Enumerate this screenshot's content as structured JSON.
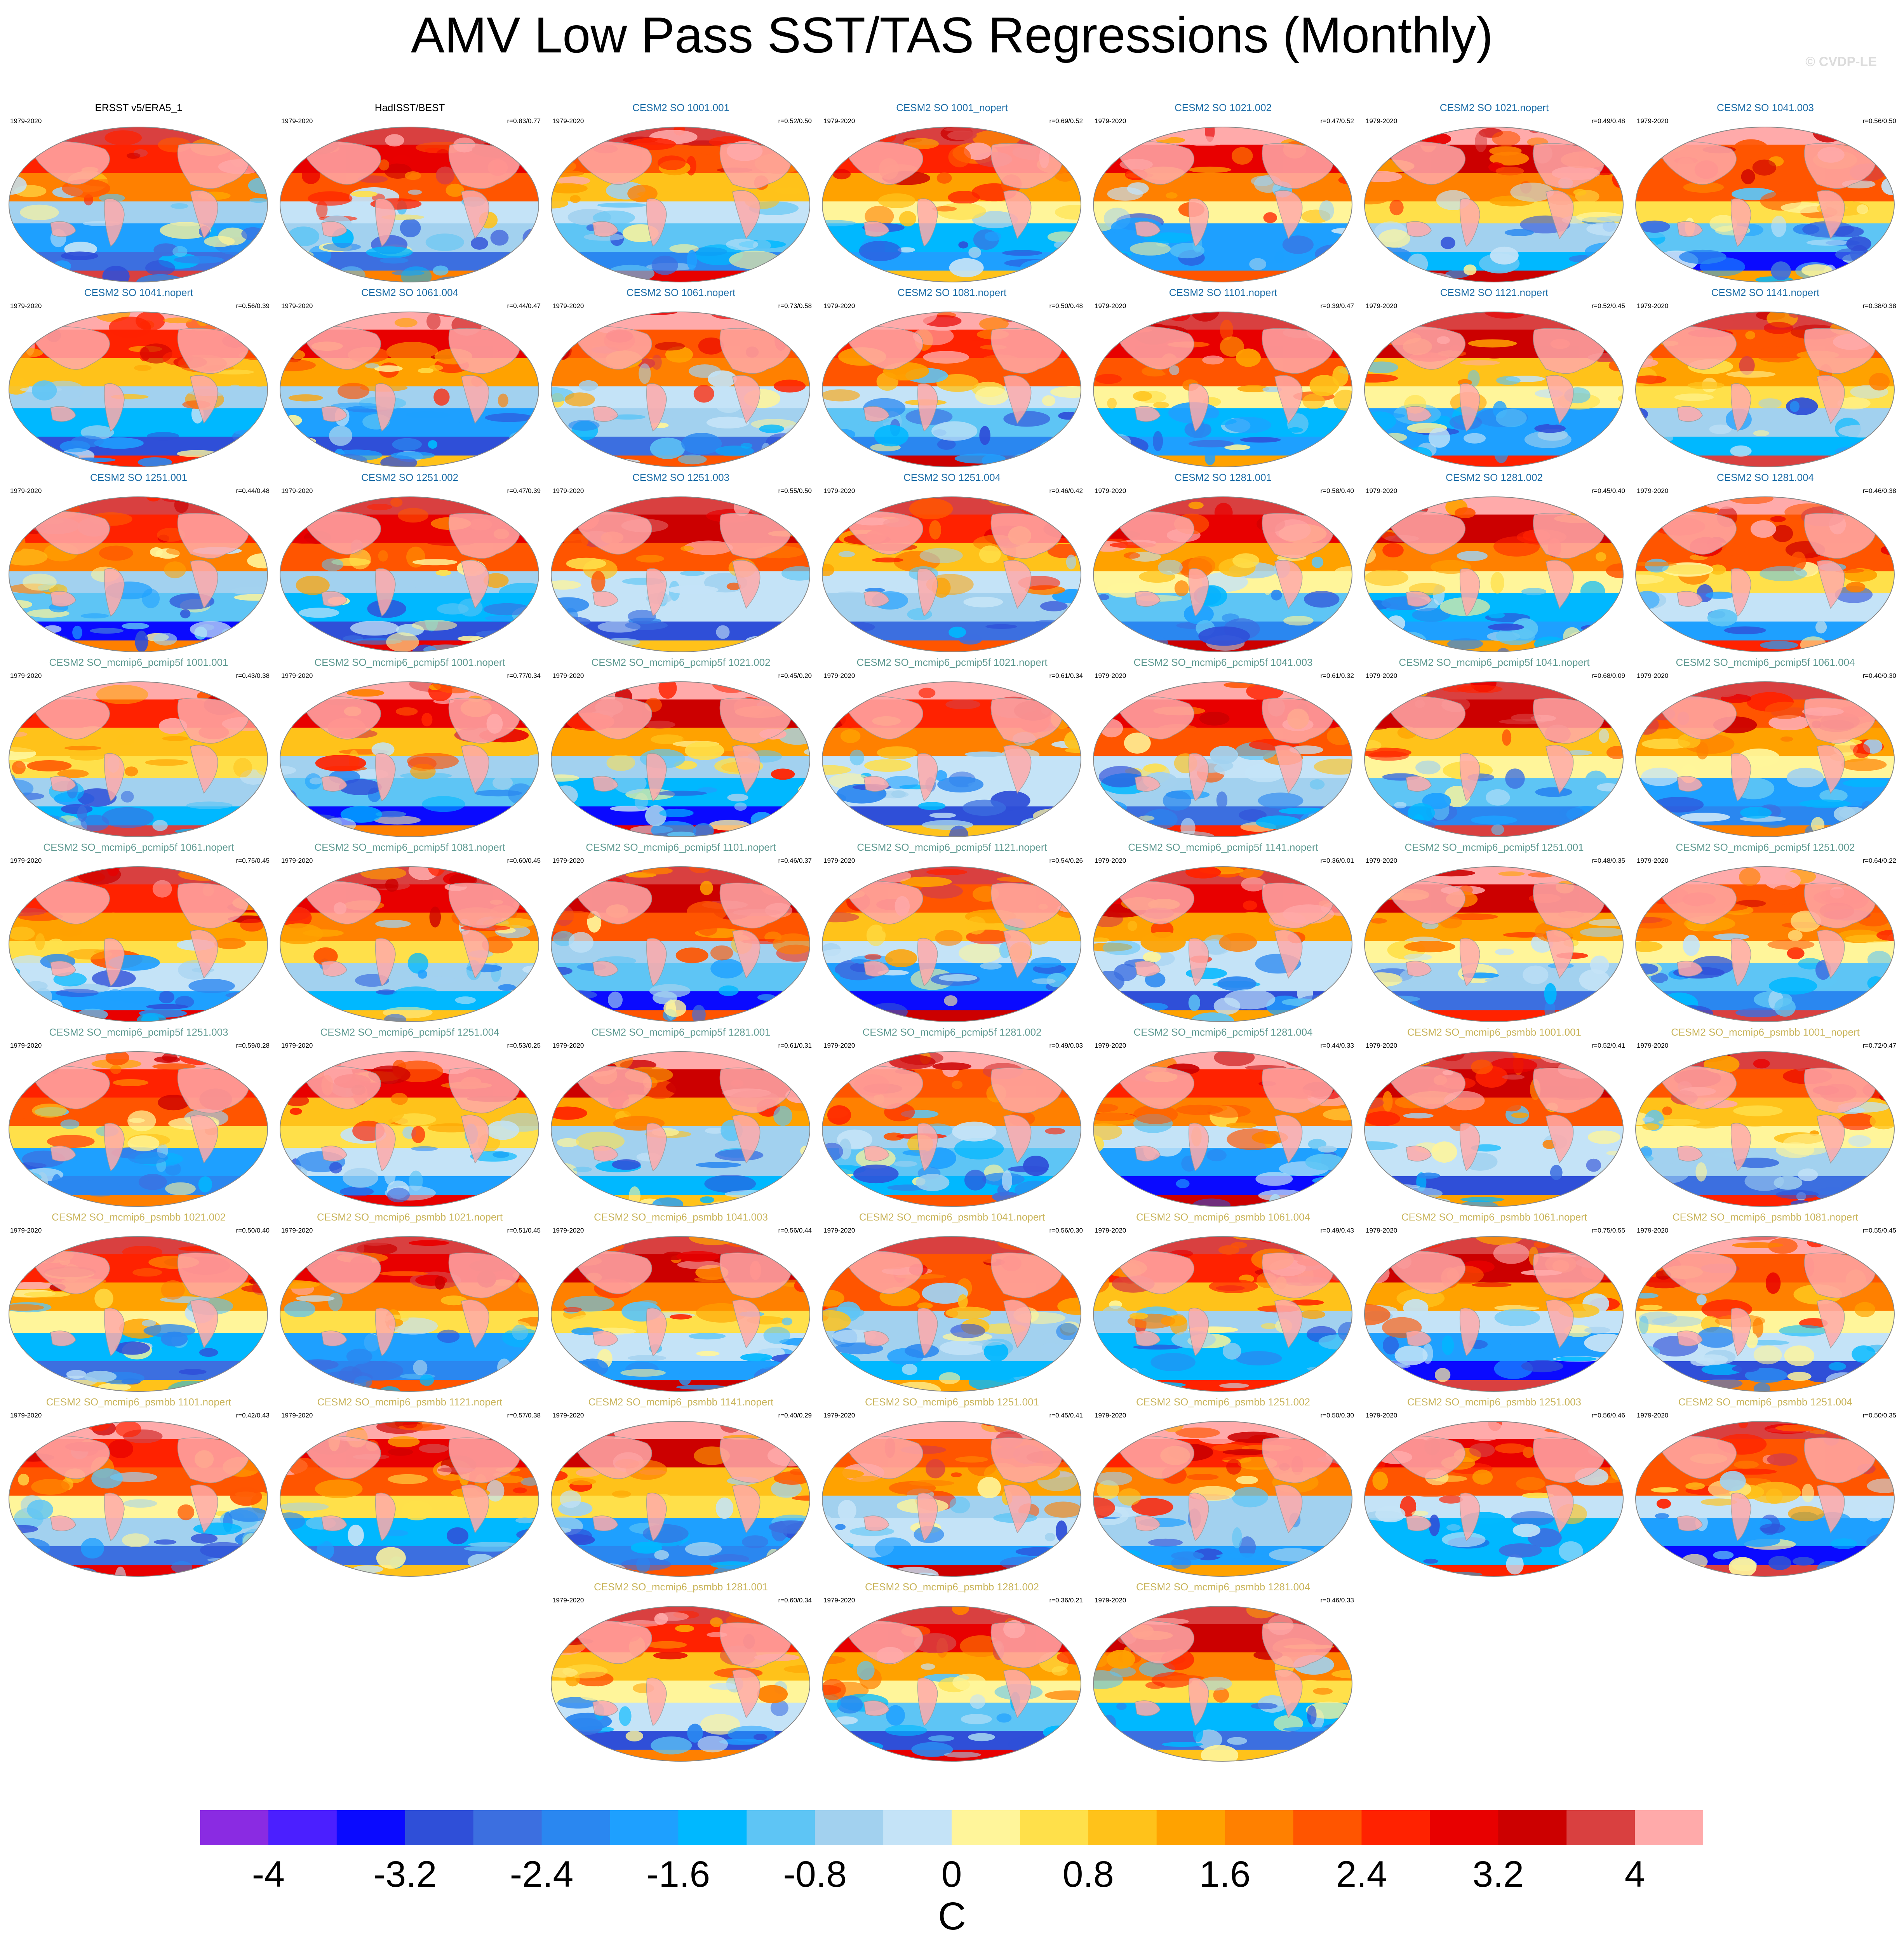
{
  "title": "AMV Low Pass SST/TAS Regressions (Monthly)",
  "credit": "© CVDP-LE",
  "colors": {
    "obs_title": "#000000",
    "so_title": "#1f6fa8",
    "pcmip_title": "#5f9a92",
    "psmbb_title": "#c9b45a"
  },
  "chart_data": {
    "type": "heatmap",
    "description_type": "grid of global regression maps",
    "period": "1979-2020",
    "panels": [
      {
        "name": "ERSST v5/ERA5_1",
        "group": "obs",
        "period": "1979-2020",
        "r": ""
      },
      {
        "name": "HadISST/BEST",
        "group": "obs",
        "period": "1979-2020",
        "r": "r=0.83/0.77"
      },
      {
        "name": "CESM2 SO 1001.001",
        "group": "so",
        "period": "1979-2020",
        "r": "r=0.52/0.50"
      },
      {
        "name": "CESM2 SO 1001_nopert",
        "group": "so",
        "period": "1979-2020",
        "r": "r=0.69/0.52"
      },
      {
        "name": "CESM2 SO 1021.002",
        "group": "so",
        "period": "1979-2020",
        "r": "r=0.47/0.52"
      },
      {
        "name": "CESM2 SO 1021.nopert",
        "group": "so",
        "period": "1979-2020",
        "r": "r=0.49/0.48"
      },
      {
        "name": "CESM2 SO 1041.003",
        "group": "so",
        "period": "1979-2020",
        "r": "r=0.56/0.50"
      },
      {
        "name": "CESM2 SO 1041.nopert",
        "group": "so",
        "period": "1979-2020",
        "r": "r=0.56/0.39"
      },
      {
        "name": "CESM2 SO 1061.004",
        "group": "so",
        "period": "1979-2020",
        "r": "r=0.44/0.47"
      },
      {
        "name": "CESM2 SO 1061.nopert",
        "group": "so",
        "period": "1979-2020",
        "r": "r=0.73/0.58"
      },
      {
        "name": "CESM2 SO 1081.nopert",
        "group": "so",
        "period": "1979-2020",
        "r": "r=0.50/0.48"
      },
      {
        "name": "CESM2 SO 1101.nopert",
        "group": "so",
        "period": "1979-2020",
        "r": "r=0.39/0.47"
      },
      {
        "name": "CESM2 SO 1121.nopert",
        "group": "so",
        "period": "1979-2020",
        "r": "r=0.52/0.45"
      },
      {
        "name": "CESM2 SO 1141.nopert",
        "group": "so",
        "period": "1979-2020",
        "r": "r=0.38/0.38"
      },
      {
        "name": "CESM2 SO 1251.001",
        "group": "so",
        "period": "1979-2020",
        "r": "r=0.44/0.48"
      },
      {
        "name": "CESM2 SO 1251.002",
        "group": "so",
        "period": "1979-2020",
        "r": "r=0.47/0.39"
      },
      {
        "name": "CESM2 SO 1251.003",
        "group": "so",
        "period": "1979-2020",
        "r": "r=0.55/0.50"
      },
      {
        "name": "CESM2 SO 1251.004",
        "group": "so",
        "period": "1979-2020",
        "r": "r=0.46/0.42"
      },
      {
        "name": "CESM2 SO 1281.001",
        "group": "so",
        "period": "1979-2020",
        "r": "r=0.58/0.40"
      },
      {
        "name": "CESM2 SO 1281.002",
        "group": "so",
        "period": "1979-2020",
        "r": "r=0.45/0.40"
      },
      {
        "name": "CESM2 SO 1281.004",
        "group": "so",
        "period": "1979-2020",
        "r": "r=0.46/0.38"
      },
      {
        "name": "CESM2 SO_mcmip6_pcmip5f 1001.001",
        "group": "pcmip",
        "period": "1979-2020",
        "r": "r=0.43/0.38"
      },
      {
        "name": "CESM2 SO_mcmip6_pcmip5f 1001.nopert",
        "group": "pcmip",
        "period": "1979-2020",
        "r": "r=0.77/0.34"
      },
      {
        "name": "CESM2 SO_mcmip6_pcmip5f 1021.002",
        "group": "pcmip",
        "period": "1979-2020",
        "r": "r=0.45/0.20"
      },
      {
        "name": "CESM2 SO_mcmip6_pcmip5f 1021.nopert",
        "group": "pcmip",
        "period": "1979-2020",
        "r": "r=0.61/0.34"
      },
      {
        "name": "CESM2 SO_mcmip6_pcmip5f 1041.003",
        "group": "pcmip",
        "period": "1979-2020",
        "r": "r=0.61/0.32"
      },
      {
        "name": "CESM2 SO_mcmip6_pcmip5f 1041.nopert",
        "group": "pcmip",
        "period": "1979-2020",
        "r": "r=0.68/0.09"
      },
      {
        "name": "CESM2 SO_mcmip6_pcmip5f 1061.004",
        "group": "pcmip",
        "period": "1979-2020",
        "r": "r=0.40/0.30"
      },
      {
        "name": "CESM2 SO_mcmip6_pcmip5f 1061.nopert",
        "group": "pcmip",
        "period": "1979-2020",
        "r": "r=0.75/0.45"
      },
      {
        "name": "CESM2 SO_mcmip6_pcmip5f 1081.nopert",
        "group": "pcmip",
        "period": "1979-2020",
        "r": "r=0.60/0.45"
      },
      {
        "name": "CESM2 SO_mcmip6_pcmip5f 1101.nopert",
        "group": "pcmip",
        "period": "1979-2020",
        "r": "r=0.46/0.37"
      },
      {
        "name": "CESM2 SO_mcmip6_pcmip5f 1121.nopert",
        "group": "pcmip",
        "period": "1979-2020",
        "r": "r=0.54/0.26"
      },
      {
        "name": "CESM2 SO_mcmip6_pcmip5f 1141.nopert",
        "group": "pcmip",
        "period": "1979-2020",
        "r": "r=0.36/0.01"
      },
      {
        "name": "CESM2 SO_mcmip6_pcmip5f 1251.001",
        "group": "pcmip",
        "period": "1979-2020",
        "r": "r=0.48/0.35"
      },
      {
        "name": "CESM2 SO_mcmip6_pcmip5f 1251.002",
        "group": "pcmip",
        "period": "1979-2020",
        "r": "r=0.64/0.22"
      },
      {
        "name": "CESM2 SO_mcmip6_pcmip5f 1251.003",
        "group": "pcmip",
        "period": "1979-2020",
        "r": "r=0.59/0.28"
      },
      {
        "name": "CESM2 SO_mcmip6_pcmip5f 1251.004",
        "group": "pcmip",
        "period": "1979-2020",
        "r": "r=0.53/0.25"
      },
      {
        "name": "CESM2 SO_mcmip6_pcmip5f 1281.001",
        "group": "pcmip",
        "period": "1979-2020",
        "r": "r=0.61/0.31"
      },
      {
        "name": "CESM2 SO_mcmip6_pcmip5f 1281.002",
        "group": "pcmip",
        "period": "1979-2020",
        "r": "r=0.49/0.03"
      },
      {
        "name": "CESM2 SO_mcmip6_pcmip5f 1281.004",
        "group": "pcmip",
        "period": "1979-2020",
        "r": "r=0.44/0.33"
      },
      {
        "name": "CESM2 SO_mcmip6_psmbb 1001.001",
        "group": "psmbb",
        "period": "1979-2020",
        "r": "r=0.52/0.41"
      },
      {
        "name": "CESM2 SO_mcmip6_psmbb 1001_nopert",
        "group": "psmbb",
        "period": "1979-2020",
        "r": "r=0.72/0.47"
      },
      {
        "name": "CESM2 SO_mcmip6_psmbb 1021.002",
        "group": "psmbb",
        "period": "1979-2020",
        "r": "r=0.50/0.40"
      },
      {
        "name": "CESM2 SO_mcmip6_psmbb 1021.nopert",
        "group": "psmbb",
        "period": "1979-2020",
        "r": "r=0.51/0.45"
      },
      {
        "name": "CESM2 SO_mcmip6_psmbb 1041.003",
        "group": "psmbb",
        "period": "1979-2020",
        "r": "r=0.56/0.44"
      },
      {
        "name": "CESM2 SO_mcmip6_psmbb 1041.nopert",
        "group": "psmbb",
        "period": "1979-2020",
        "r": "r=0.56/0.30"
      },
      {
        "name": "CESM2 SO_mcmip6_psmbb 1061.004",
        "group": "psmbb",
        "period": "1979-2020",
        "r": "r=0.49/0.43"
      },
      {
        "name": "CESM2 SO_mcmip6_psmbb 1061.nopert",
        "group": "psmbb",
        "period": "1979-2020",
        "r": "r=0.75/0.55"
      },
      {
        "name": "CESM2 SO_mcmip6_psmbb 1081.nopert",
        "group": "psmbb",
        "period": "1979-2020",
        "r": "r=0.55/0.45"
      },
      {
        "name": "CESM2 SO_mcmip6_psmbb 1101.nopert",
        "group": "psmbb",
        "period": "1979-2020",
        "r": "r=0.42/0.43"
      },
      {
        "name": "CESM2 SO_mcmip6_psmbb 1121.nopert",
        "group": "psmbb",
        "period": "1979-2020",
        "r": "r=0.57/0.38"
      },
      {
        "name": "CESM2 SO_mcmip6_psmbb 1141.nopert",
        "group": "psmbb",
        "period": "1979-2020",
        "r": "r=0.40/0.29"
      },
      {
        "name": "CESM2 SO_mcmip6_psmbb 1251.001",
        "group": "psmbb",
        "period": "1979-2020",
        "r": "r=0.45/0.41"
      },
      {
        "name": "CESM2 SO_mcmip6_psmbb 1251.002",
        "group": "psmbb",
        "period": "1979-2020",
        "r": "r=0.50/0.30"
      },
      {
        "name": "CESM2 SO_mcmip6_psmbb 1251.003",
        "group": "psmbb",
        "period": "1979-2020",
        "r": "r=0.56/0.46"
      },
      {
        "name": "CESM2 SO_mcmip6_psmbb 1251.004",
        "group": "psmbb",
        "period": "1979-2020",
        "r": "r=0.50/0.35"
      },
      {
        "name": "CESM2 SO_mcmip6_psmbb 1281.001",
        "group": "psmbb",
        "period": "1979-2020",
        "r": "r=0.60/0.34"
      },
      {
        "name": "CESM2 SO_mcmip6_psmbb 1281.002",
        "group": "psmbb",
        "period": "1979-2020",
        "r": "r=0.36/0.21"
      },
      {
        "name": "CESM2 SO_mcmip6_psmbb 1281.004",
        "group": "psmbb",
        "period": "1979-2020",
        "r": "r=0.46/0.33"
      }
    ],
    "colorbar": {
      "units": "C",
      "range": [
        -4.4,
        4.4
      ],
      "step": 0.4,
      "tick_labels": [
        "-4",
        "-3.2",
        "-2.4",
        "-1.6",
        "-0.8",
        "0",
        "0.8",
        "1.6",
        "2.4",
        "3.2",
        "4"
      ],
      "tick_values": [
        -4,
        -3.2,
        -2.4,
        -1.6,
        -0.8,
        0,
        0.8,
        1.6,
        2.4,
        3.2,
        4
      ],
      "colors": [
        "#8a2be2",
        "#4b1fff",
        "#0a0aff",
        "#2f4fd8",
        "#3c6fe0",
        "#2a87f0",
        "#1ea0ff",
        "#00b8ff",
        "#5ec5f5",
        "#a2d1ef",
        "#c4e3f7",
        "#fff59a",
        "#ffe04a",
        "#ffc21a",
        "#ffa200",
        "#ff8000",
        "#ff5500",
        "#ff2200",
        "#e80000",
        "#cc0000",
        "#d94040",
        "#ffaaaa"
      ]
    }
  }
}
